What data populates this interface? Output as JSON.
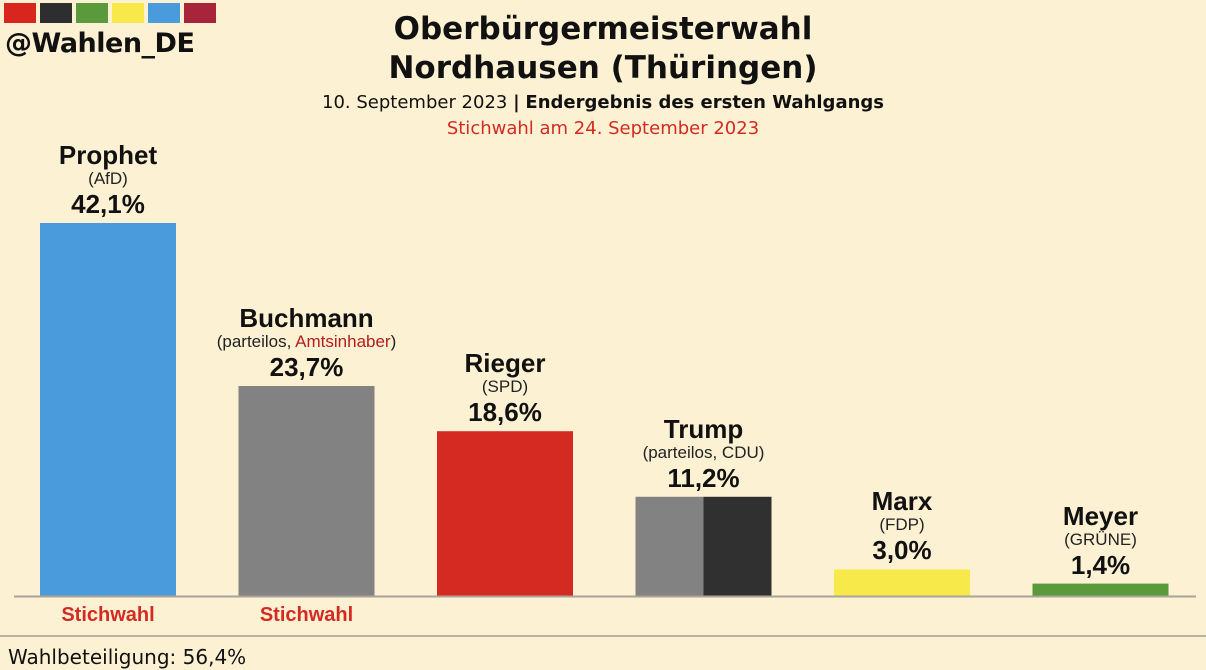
{
  "header": {
    "brand_colors": [
      "#d8261e",
      "#2e2e2e",
      "#5a9a3a",
      "#f7e94a",
      "#4a9bdc",
      "#a8243a"
    ],
    "handle": "@Wahlen_DE",
    "title_line1": "Oberbürgermeisterwahl",
    "title_line2": "Nordhausen (Thüringen)",
    "date": "10. September 2023",
    "separator": "|",
    "result_label": "Endergebnis des ersten Wahlgangs",
    "runoff_note": "Stichwahl am 24. September 2023"
  },
  "chart_data": {
    "type": "bar",
    "title": "Oberbürgermeisterwahl Nordhausen (Thüringen)",
    "xlabel": "",
    "ylabel": "",
    "ylim": [
      0,
      42.1
    ],
    "grid": false,
    "categories": [
      "Prophet",
      "Buchmann",
      "Rieger",
      "Trump",
      "Marx",
      "Meyer"
    ],
    "values": [
      42.1,
      23.7,
      18.6,
      11.2,
      3.0,
      1.4
    ],
    "candidates": [
      {
        "name": "Prophet",
        "party": "(AfD)",
        "party_pre": "(AfD)",
        "party_red": "",
        "party_post": "",
        "value": 42.1,
        "label": "42,1%",
        "colors": [
          "#4a9bdc"
        ],
        "runoff": "Stichwahl"
      },
      {
        "name": "Buchmann",
        "party": "(parteilos, Amtsinhaber)",
        "party_pre": "(parteilos, ",
        "party_red": "Amtsinhaber",
        "party_post": ")",
        "value": 23.7,
        "label": "23,7%",
        "colors": [
          "#828282"
        ],
        "runoff": "Stichwahl"
      },
      {
        "name": "Rieger",
        "party": "(SPD)",
        "party_pre": "(SPD)",
        "party_red": "",
        "party_post": "",
        "value": 18.6,
        "label": "18,6%",
        "colors": [
          "#d42a22"
        ],
        "runoff": ""
      },
      {
        "name": "Trump",
        "party": "(parteilos, CDU)",
        "party_pre": "(parteilos, CDU)",
        "party_red": "",
        "party_post": "",
        "value": 11.2,
        "label": "11,2%",
        "colors": [
          "#828282",
          "#303030"
        ],
        "runoff": ""
      },
      {
        "name": "Marx",
        "party": "(FDP)",
        "party_pre": "(FDP)",
        "party_red": "",
        "party_post": "",
        "value": 3.0,
        "label": "3,0%",
        "colors": [
          "#f7e94a"
        ],
        "runoff": ""
      },
      {
        "name": "Meyer",
        "party": "(GRÜNE)",
        "party_pre": "(GRÜNE)",
        "party_red": "",
        "party_post": "",
        "value": 1.4,
        "label": "1,4%",
        "colors": [
          "#5a9a3a"
        ],
        "runoff": ""
      }
    ]
  },
  "footer": {
    "turnout": "Wahlbeteiligung: 56,4%"
  }
}
